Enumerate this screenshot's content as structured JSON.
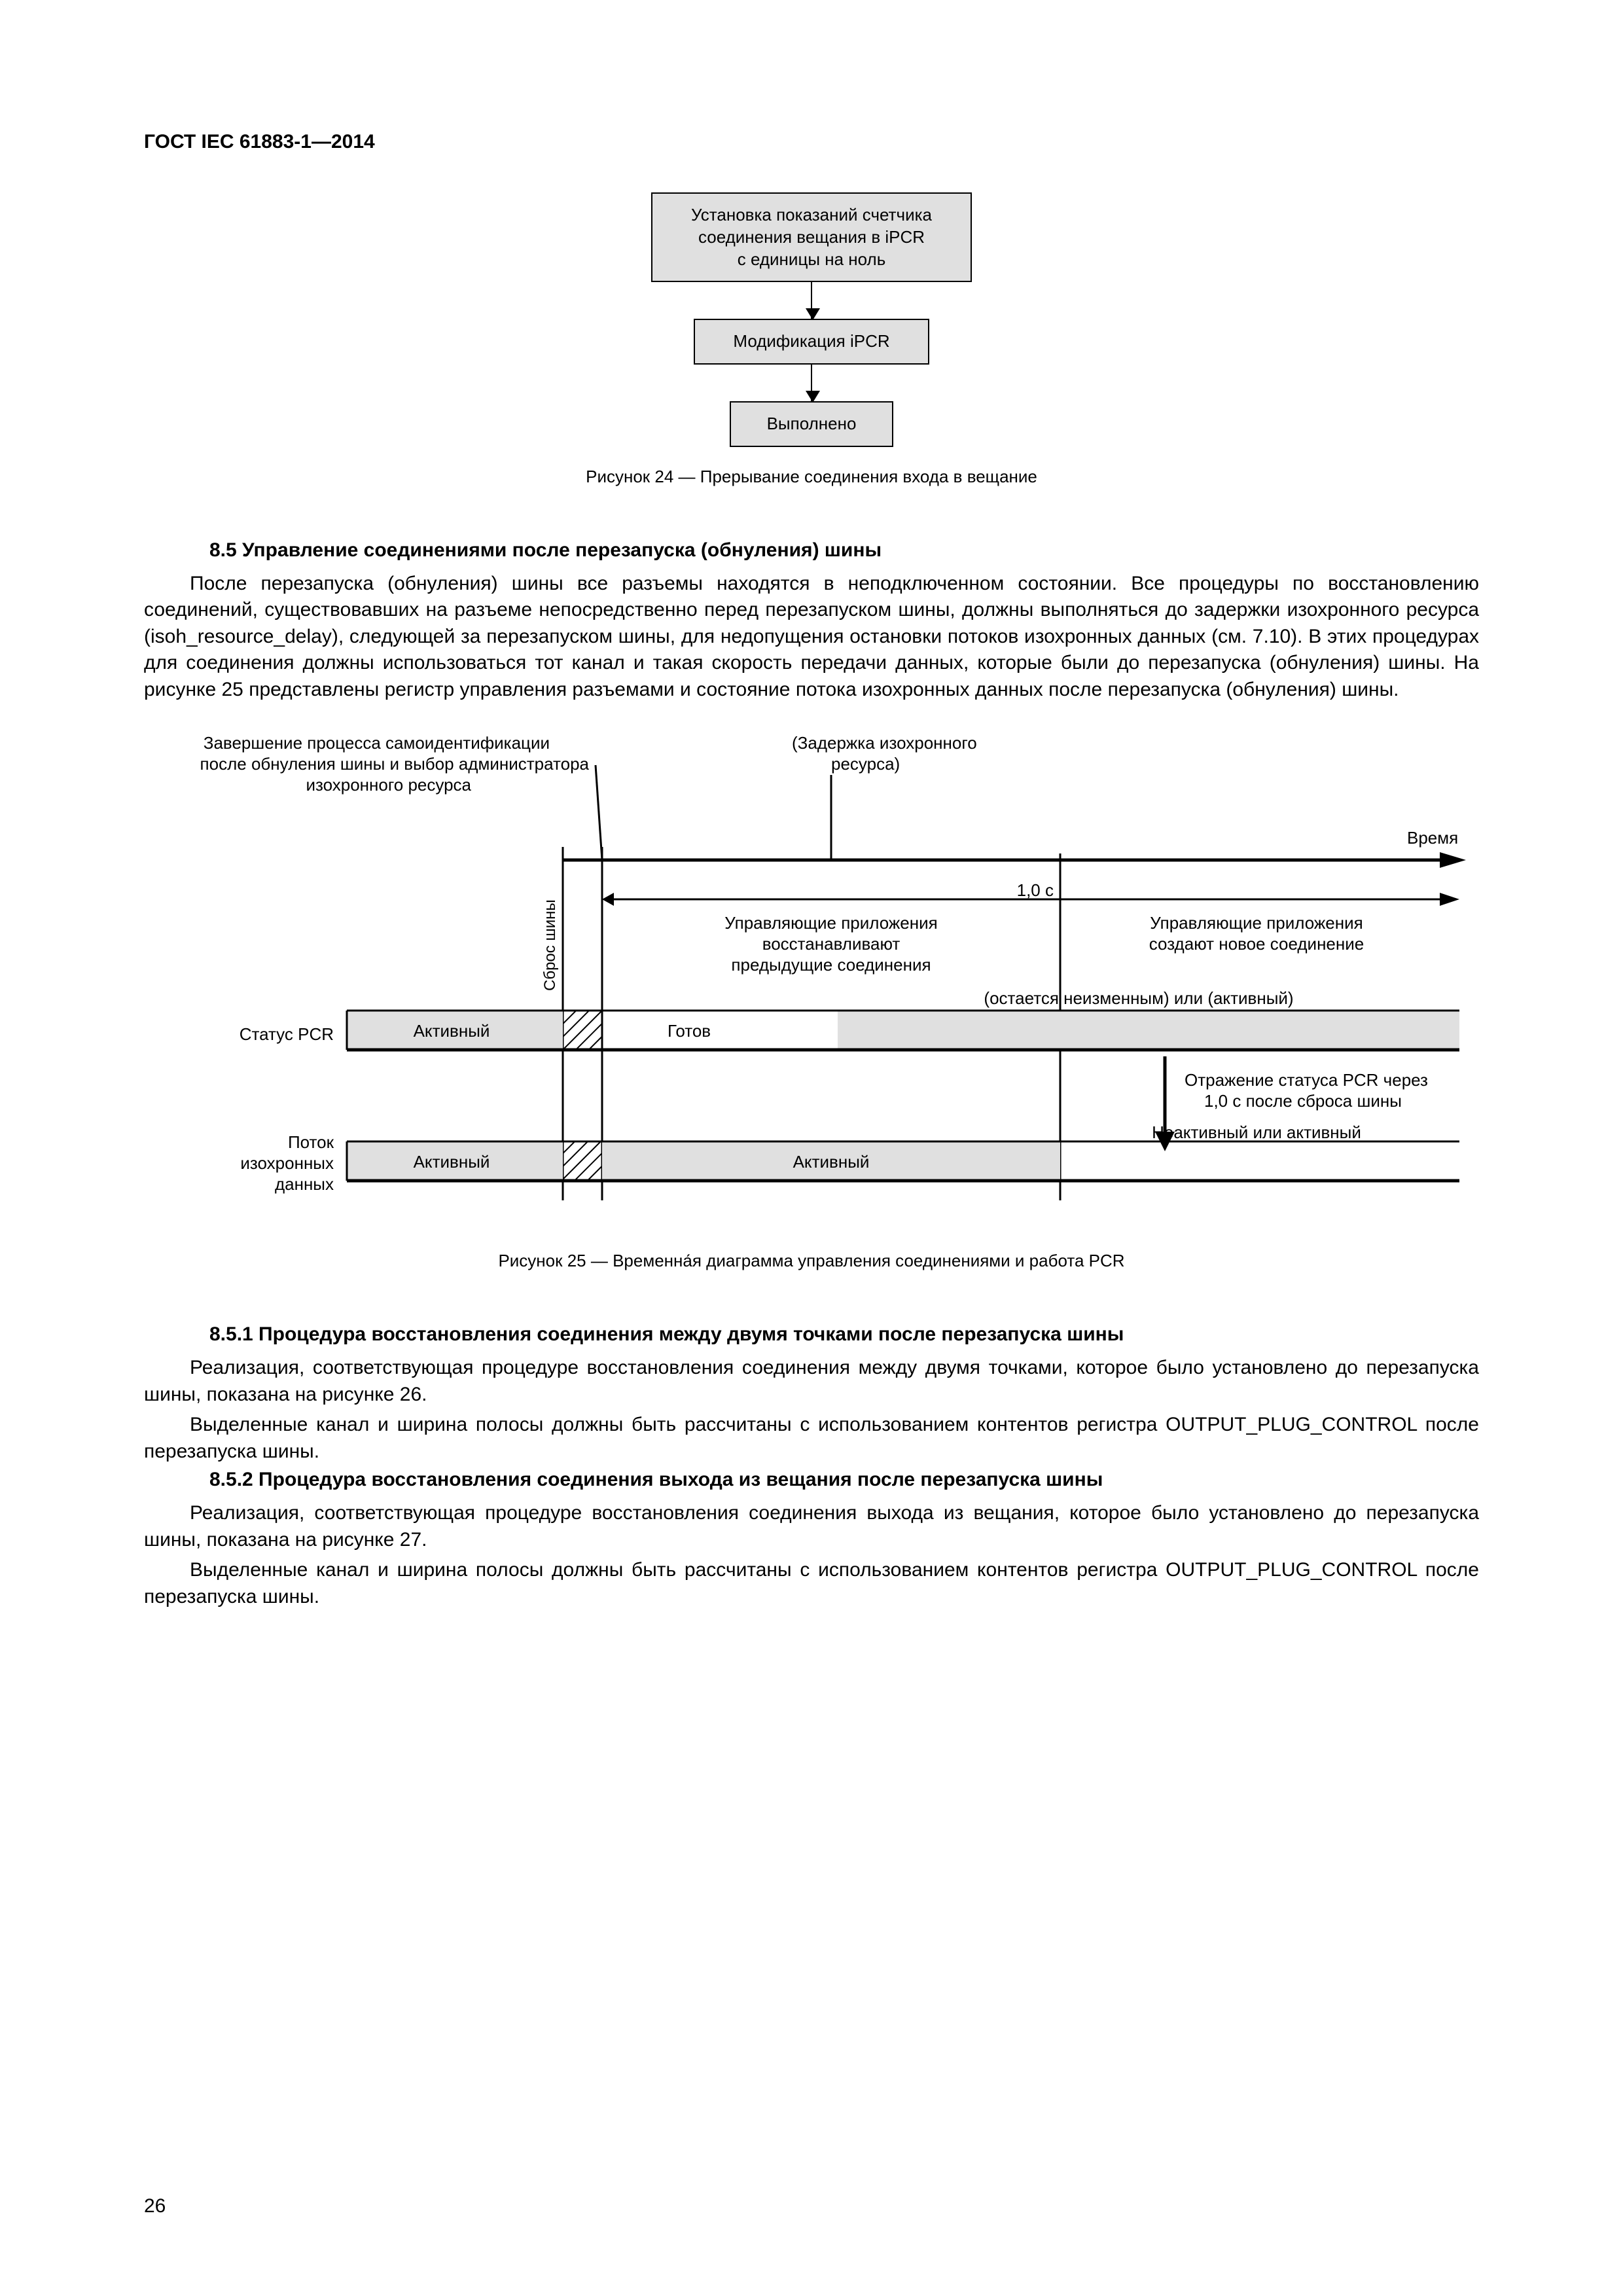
{
  "doc_id": "ГОСТ IEC 61883-1—2014",
  "page_number": "26",
  "flowchart": {
    "box1": "Установка показаний счетчика\nсоединения вещания в iPCR\nс единицы на ноль",
    "box2": "Модификация iPCR",
    "box3": "Выполнено",
    "box1_w": 430,
    "box2_w": 300,
    "box3_w": 190,
    "box_bg": "#e0e0e0"
  },
  "fig24_caption": "Рисунок  24 — Прерывание соединения входа в вещание",
  "section85": {
    "heading": "8.5  Управление соединениями после перезапуска (обнуления) шины",
    "para": "После перезапуска (обнуления) шины все разъемы находятся в неподключенном состоянии. Все процедуры по восстановлению соединений, существовавших на разъеме непосредственно перед перезапуском шины, должны выполняться до задержки изохронного ресурса (isoh_resource_delay), следующей за перезапуском шины, для недопущения остановки потоков изохронных данных (см. 7.10). В этих процедурах для соединения должны использоваться тот канал и такая скорость передачи данных, которые были до перезапуска (обнуления) шины. На рисунке 25 представлены регистр управления разъемами и состояние потока изохронных данных после перезапуска (обнуления) шины."
  },
  "timing": {
    "top_left_1": "Завершение процесса самоидентификации",
    "top_left_2": "после обнуления шины и выбор администратора",
    "top_left_3": "изохронного ресурса",
    "top_right_1": "(Задержка изохронного",
    "top_right_2": "ресурса)",
    "axis_label": "Время",
    "tick_1s": "1,0 с",
    "bus_reset": "Сброс шины",
    "mid_center_1": "Управляющие приложения",
    "mid_center_2": "восстанавливают",
    "mid_center_3": "предыдущие соединения",
    "mid_right_1": "Управляющие приложения",
    "mid_right_2": "создают новое соединение",
    "row1_label": "Статус PCR",
    "row1_left": "Активный",
    "row1_mid": "Готов",
    "row1_right": "(остается неизменным) или (активный)",
    "reflect_1": "Отражение статуса PCR через",
    "reflect_2": "1,0 с после сброса шины",
    "row2_label_1": "Поток",
    "row2_label_2": "изохронных",
    "row2_label_3": "данных",
    "row2_left": "Активный",
    "row2_mid": "Активный",
    "row2_right": "Неактивный или активный",
    "colors": {
      "grey": "#e0e0e0",
      "hatch": "#000"
    }
  },
  "fig25_caption": "Рисунок  25 — Временна́я диаграмма управления соединениями и работа PCR",
  "sec851": {
    "heading": "8.5.1  Процедура восстановления соединения между двумя точками после перезапуска шины",
    "p1": "Реализация, соответствующая процедуре восстановления соединения между двумя точками, которое было установлено до перезапуска шины, показана на рисунке 26.",
    "p2": "Выделенные канал и ширина полосы должны быть рассчитаны с использованием контентов регистра OUTPUT_PLUG_CONTROL после перезапуска шины."
  },
  "sec852": {
    "heading": "8.5.2  Процедура восстановления соединения выхода из вещания после перезапуска шины",
    "p1": "Реализация, соответствующая процедуре восстановления соединения выхода из вещания, которое было установлено до перезапуска шины, показана на рисунке 27.",
    "p2": "Выделенные канал и ширина полосы должны быть рассчитаны с использованием контентов регистра OUTPUT_PLUG_CONTROL после перезапуска шины."
  }
}
